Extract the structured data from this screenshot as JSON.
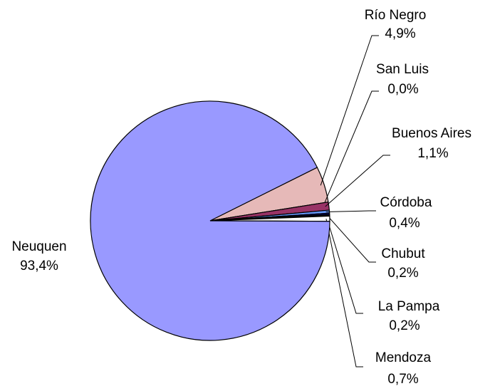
{
  "chart_data": {
    "type": "pie",
    "categories": [
      "Río Negro",
      "San Luis",
      "Buenos Aires",
      "Córdoba",
      "Chubut",
      "La Pampa",
      "Mendoza",
      "Neuquen"
    ],
    "values": [
      4.9,
      0.0,
      1.1,
      0.4,
      0.2,
      0.2,
      0.7,
      93.4
    ],
    "value_labels": [
      "4,9%",
      "0,0%",
      "1,1%",
      "0,4%",
      "0,2%",
      "0,2%",
      "0,7%",
      "93,4%"
    ],
    "colors": [
      "#e6b9b8",
      "#ffcc99",
      "#993366",
      "#6699ff",
      "#000080",
      "#000000",
      "#ffffff",
      "#9999ff"
    ]
  }
}
